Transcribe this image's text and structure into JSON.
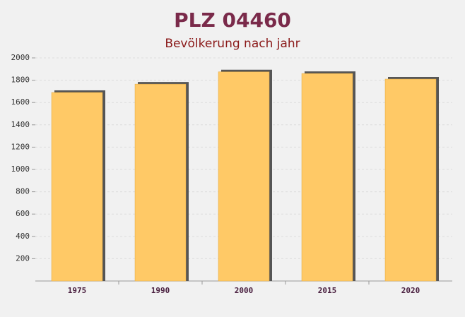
{
  "chart_data": {
    "type": "bar",
    "title": "PLZ 04460",
    "subtitle": "Bevölkerung nach jahr",
    "categories": [
      "1975",
      "1990",
      "2000",
      "2015",
      "2020"
    ],
    "values": [
      1690,
      1765,
      1875,
      1860,
      1810
    ],
    "color": "#ffc966",
    "ylim": [
      0,
      2000
    ],
    "yticks": [
      200,
      400,
      600,
      800,
      1000,
      1200,
      1400,
      1600,
      1800,
      2000
    ],
    "grid": true
  }
}
